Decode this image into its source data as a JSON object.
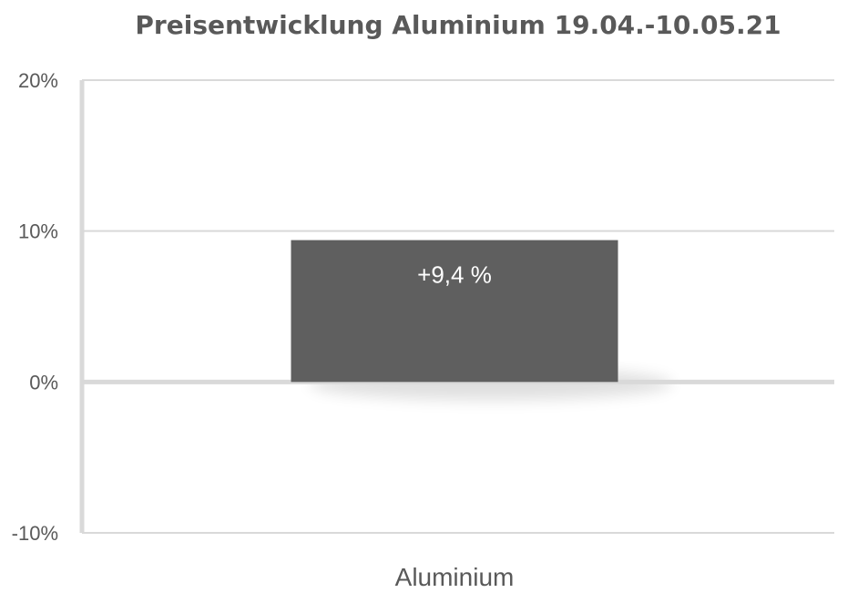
{
  "chart_data": {
    "type": "bar",
    "title": "Preisentwicklung Aluminium 19.04.-10.05.21",
    "categories": [
      "Aluminium"
    ],
    "values": [
      9.4
    ],
    "data_labels": [
      "+9,4 %"
    ],
    "ylim": [
      -10,
      20
    ],
    "yticks": [
      -10,
      0,
      10,
      20
    ],
    "ytick_labels": [
      "-10%",
      "0%",
      "10%",
      "20%"
    ],
    "xlabel": "",
    "ylabel": "",
    "grid": true,
    "legend": "none",
    "colors": {
      "bar": "#5f5f5f",
      "grid": "#d9d9d9",
      "axis": "#d9d9d9",
      "text": "#595959"
    }
  }
}
